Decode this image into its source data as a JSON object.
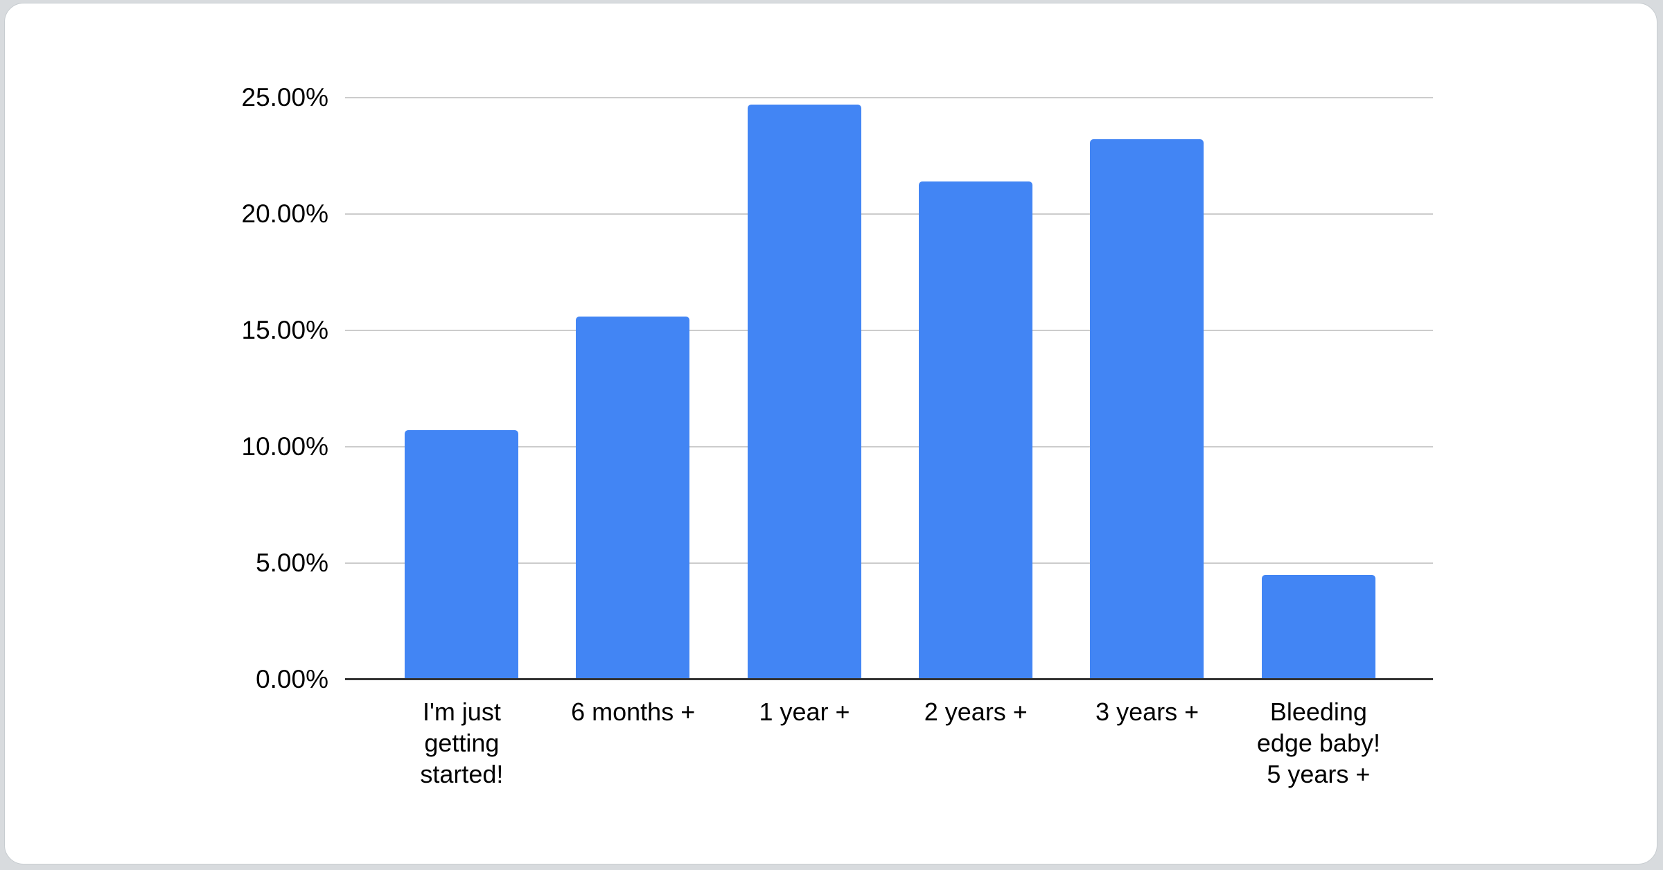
{
  "page": {
    "background_color": "#d8dbde",
    "card_background_color": "#ffffff"
  },
  "chart_data": {
    "type": "bar",
    "title": "",
    "xlabel": "",
    "ylabel": "",
    "categories": [
      "I'm just\ngetting\nstarted!",
      "6 months +",
      "1 year +",
      "2 years +",
      "3 years +",
      "Bleeding\nedge baby!\n5 years +"
    ],
    "values": [
      10.7,
      15.6,
      24.7,
      21.4,
      23.2,
      4.5
    ],
    "unit": "%",
    "ylim": [
      0,
      25
    ],
    "yticks": [
      {
        "value": 0,
        "label": "0.00%"
      },
      {
        "value": 5,
        "label": "5.00%"
      },
      {
        "value": 10,
        "label": "10.00%"
      },
      {
        "value": 15,
        "label": "15.00%"
      },
      {
        "value": 20,
        "label": "20.00%"
      },
      {
        "value": 25,
        "label": "25.00%"
      }
    ],
    "grid": true,
    "legend": "none",
    "colors": {
      "bar": "#4285f4",
      "gridline": "#cccccc",
      "axis_line": "#333333",
      "tick_text": "#000000"
    }
  }
}
